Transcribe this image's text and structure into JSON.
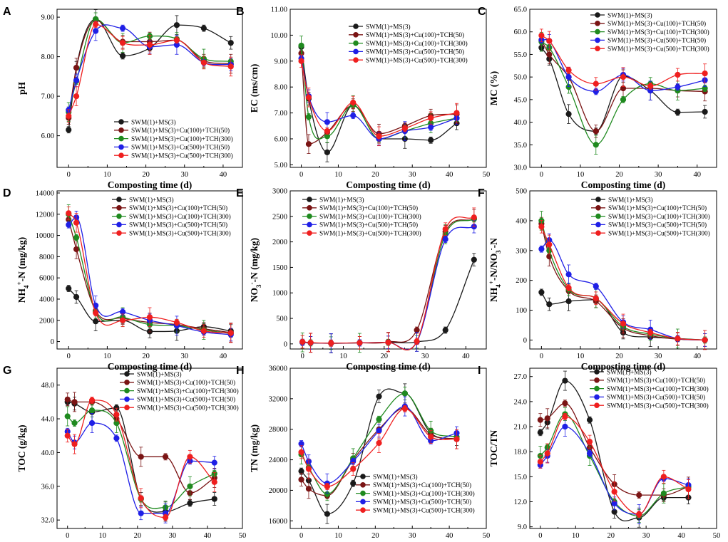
{
  "figure": {
    "x_label": "Composting time (d)"
  },
  "series_colors": [
    "#1a1a1a",
    "#7a1414",
    "#1f8a1f",
    "#1f1fe6",
    "#ef1f1f"
  ],
  "legend_labels": [
    "SWM(1)+MS(3)",
    "SWM(1)+MS(3)+Cu(100)+TCH(50)",
    "SWM(1)+MS(3)+Cu(100)+TCH(300)",
    "SWM(1)+MS(3)+Cu(500)+TCH(50)",
    "SWM(1)+MS(3)+Cu(500)+TCH(300)"
  ],
  "chart_data": [
    {
      "panel": "A",
      "type": "line",
      "ylabel": "pH",
      "xlim": [
        -3,
        45
      ],
      "xticks": [
        0,
        10,
        20,
        30,
        40
      ],
      "ylim": [
        5.2,
        9.2
      ],
      "yticks": [
        "6.00",
        "7.00",
        "8.00",
        "9.00"
      ],
      "ytick_values": [
        6,
        7,
        8,
        9
      ],
      "x": [
        0,
        2,
        7,
        14,
        21,
        28,
        35,
        42
      ],
      "series": [
        {
          "name": "SWM(1)+MS(3)",
          "values": [
            6.15,
            7.72,
            8.95,
            8.02,
            8.22,
            8.8,
            8.72,
            8.35
          ]
        },
        {
          "name": "SWM(1)+MS(3)+Cu(100)+TCH(50)",
          "values": [
            6.45,
            7.72,
            8.92,
            8.38,
            8.38,
            8.42,
            7.9,
            7.82
          ]
        },
        {
          "name": "SWM(1)+MS(3)+Cu(100)+TCH(300)",
          "values": [
            6.6,
            7.38,
            8.95,
            8.35,
            8.52,
            8.45,
            7.95,
            7.88
          ]
        },
        {
          "name": "SWM(1)+MS(3)+Cu(500)+TCH(50)",
          "values": [
            6.65,
            7.4,
            8.65,
            8.72,
            8.25,
            8.3,
            7.85,
            7.8
          ]
        },
        {
          "name": "SWM(1)+MS(3)+Cu(500)+TCH(300)",
          "values": [
            6.5,
            7.0,
            8.82,
            8.35,
            8.3,
            8.42,
            7.85,
            7.75
          ]
        }
      ],
      "legend": "bottom-right"
    },
    {
      "panel": "B",
      "type": "line",
      "ylabel": "EC (ms/cm)",
      "xlim": [
        -3,
        50
      ],
      "xticks": [
        0,
        10,
        20,
        30,
        40,
        50
      ],
      "ylim": [
        4.9,
        11.0
      ],
      "yticks": [
        "5.00",
        "6.00",
        "7.00",
        "8.00",
        "9.00",
        "10.00",
        "11.00"
      ],
      "ytick_values": [
        5,
        6,
        7,
        8,
        9,
        10,
        11
      ],
      "x": [
        0,
        2,
        7,
        14,
        21,
        28,
        35,
        42
      ],
      "series": [
        {
          "name": "SWM(1)+MS(3)",
          "values": [
            9.55,
            7.55,
            5.48,
            7.3,
            6.0,
            6.0,
            5.95,
            6.6
          ]
        },
        {
          "name": "SWM(1)+MS(3)+Cu(100)+TCH(50)",
          "values": [
            9.3,
            5.8,
            6.25,
            7.3,
            6.2,
            6.5,
            6.9,
            6.95
          ]
        },
        {
          "name": "SWM(1)+MS(3)+Cu(100)+TCH(300)",
          "values": [
            9.6,
            6.85,
            6.1,
            7.3,
            6.0,
            6.3,
            6.6,
            6.8
          ]
        },
        {
          "name": "SWM(1)+MS(3)+Cu(500)+TCH(50)",
          "values": [
            9.1,
            7.65,
            6.65,
            6.9,
            6.0,
            6.3,
            6.45,
            6.8
          ]
        },
        {
          "name": "SWM(1)+MS(3)+Cu(500)+TCH(300)",
          "values": [
            9.0,
            7.6,
            6.3,
            7.4,
            6.1,
            6.4,
            6.8,
            7.0
          ]
        }
      ],
      "legend": "top-right"
    },
    {
      "panel": "C",
      "type": "line",
      "ylabel": "MC (%)",
      "xlim": [
        -3,
        45
      ],
      "xticks": [
        0,
        10,
        20,
        30,
        40
      ],
      "ylim": [
        30.0,
        65.0
      ],
      "yticks": [
        "30.0",
        "35.0",
        "40.0",
        "45.0",
        "50.0",
        "55.0",
        "60.0",
        "65.0"
      ],
      "ytick_values": [
        30,
        35,
        40,
        45,
        50,
        55,
        60,
        65
      ],
      "x": [
        0,
        2,
        7,
        14,
        21,
        28,
        35,
        42
      ],
      "series": [
        {
          "name": "SWM(1)+MS(3)",
          "values": [
            56.5,
            54.0,
            41.8,
            38.0,
            50.2,
            47.0,
            42.2,
            42.3
          ]
        },
        {
          "name": "SWM(1)+MS(3)+Cu(100)+TCH(50)",
          "values": [
            58.2,
            55.0,
            50.0,
            38.0,
            47.5,
            47.5,
            47.0,
            46.8
          ]
        },
        {
          "name": "SWM(1)+MS(3)+Cu(100)+TCH(300)",
          "values": [
            57.8,
            56.5,
            47.8,
            35.0,
            45.0,
            48.5,
            47.0,
            47.5
          ]
        },
        {
          "name": "SWM(1)+MS(3)+Cu(500)+TCH(50)",
          "values": [
            58.2,
            58.0,
            50.0,
            46.8,
            50.5,
            47.0,
            47.8,
            49.3
          ]
        },
        {
          "name": "SWM(1)+MS(3)+Cu(500)+TCH(300)",
          "values": [
            59.2,
            58.0,
            51.5,
            48.5,
            50.0,
            48.0,
            50.5,
            50.8
          ]
        }
      ],
      "legend": "top-right"
    },
    {
      "panel": "D",
      "type": "line",
      "ylabel": "NH4+-N (mg/kg)",
      "xlim": [
        -3,
        45
      ],
      "xticks": [
        0,
        10,
        20,
        30,
        40
      ],
      "ylim": [
        -700,
        14200
      ],
      "yticks": [
        "0",
        "2000",
        "4000",
        "6000",
        "8000",
        "10000",
        "12000",
        "14000"
      ],
      "ytick_values": [
        0,
        2000,
        4000,
        6000,
        8000,
        10000,
        12000,
        14000
      ],
      "x": [
        0,
        2,
        7,
        14,
        21,
        28,
        35,
        42
      ],
      "series": [
        {
          "name": "SWM(1)+MS(3)",
          "values": [
            5000,
            4200,
            1900,
            2000,
            950,
            1000,
            1400,
            1000
          ]
        },
        {
          "name": "SWM(1)+MS(3)+Cu(100)+TCH(50)",
          "values": [
            11500,
            8700,
            2900,
            2200,
            1800,
            1600,
            1200,
            850
          ]
        },
        {
          "name": "SWM(1)+MS(3)+Cu(100)+TCH(300)",
          "values": [
            12000,
            9800,
            2800,
            2300,
            1600,
            1500,
            1100,
            750
          ]
        },
        {
          "name": "SWM(1)+MS(3)+Cu(500)+TCH(50)",
          "values": [
            11000,
            11700,
            3400,
            2800,
            2000,
            1500,
            900,
            650
          ]
        },
        {
          "name": "SWM(1)+MS(3)+Cu(500)+TCH(300)",
          "values": [
            12100,
            11200,
            2700,
            2000,
            2300,
            1800,
            1000,
            800
          ]
        }
      ],
      "legend": "top-right"
    },
    {
      "panel": "E",
      "type": "line",
      "ylabel": "NO3--N (mg/kg)",
      "xlim": [
        -3,
        45
      ],
      "xticks": [
        0,
        10,
        20,
        30,
        40
      ],
      "ylim": [
        -100,
        3000
      ],
      "yticks": [
        "0",
        "500",
        "1000",
        "1500",
        "2000",
        "2500",
        "3000"
      ],
      "ytick_values": [
        0,
        500,
        1000,
        1500,
        2000,
        2500,
        3000
      ],
      "x": [
        0,
        2,
        7,
        14,
        21,
        28,
        35,
        42
      ],
      "series": [
        {
          "name": "SWM(1)+MS(3)",
          "values": [
            30,
            20,
            10,
            20,
            30,
            40,
            270,
            1650
          ]
        },
        {
          "name": "SWM(1)+MS(3)+Cu(100)+TCH(50)",
          "values": [
            40,
            20,
            15,
            20,
            40,
            270,
            2200,
            2450
          ]
        },
        {
          "name": "SWM(1)+MS(3)+Cu(100)+TCH(300)",
          "values": [
            30,
            20,
            15,
            20,
            30,
            40,
            2150,
            2450
          ]
        },
        {
          "name": "SWM(1)+MS(3)+Cu(500)+TCH(50)",
          "values": [
            30,
            20,
            15,
            20,
            30,
            40,
            2050,
            2300
          ]
        },
        {
          "name": "SWM(1)+MS(3)+Cu(500)+TCH(300)",
          "values": [
            40,
            25,
            15,
            20,
            30,
            50,
            2250,
            2480
          ]
        }
      ],
      "legend": "top-left"
    },
    {
      "panel": "F",
      "type": "line",
      "ylabel": "NH4+-N/NO3--N",
      "xlim": [
        -3,
        45
      ],
      "xticks": [
        0,
        10,
        20,
        30,
        40
      ],
      "ylim": [
        -30,
        500
      ],
      "yticks": [
        "0",
        "100",
        "200",
        "300",
        "400",
        "500"
      ],
      "ytick_values": [
        0,
        100,
        200,
        300,
        400,
        500
      ],
      "x": [
        0,
        2,
        7,
        14,
        21,
        28,
        35,
        42
      ],
      "series": [
        {
          "name": "SWM(1)+MS(3)",
          "values": [
            160,
            120,
            130,
            135,
            25,
            10,
            5,
            0
          ]
        },
        {
          "name": "SWM(1)+MS(3)+Cu(100)+TCH(50)",
          "values": [
            390,
            280,
            165,
            130,
            40,
            15,
            3,
            0
          ]
        },
        {
          "name": "SWM(1)+MS(3)+Cu(100)+TCH(300)",
          "values": [
            400,
            300,
            170,
            140,
            45,
            20,
            5,
            0
          ]
        },
        {
          "name": "SWM(1)+MS(3)+Cu(500)+TCH(50)",
          "values": [
            305,
            335,
            220,
            180,
            60,
            35,
            5,
            0
          ]
        },
        {
          "name": "SWM(1)+MS(3)+Cu(500)+TCH(300)",
          "values": [
            380,
            320,
            175,
            140,
            55,
            25,
            5,
            0
          ]
        }
      ],
      "legend": "top-right"
    },
    {
      "panel": "G",
      "type": "line",
      "ylabel": "TOC (g/kg)",
      "xlim": [
        -3,
        50
      ],
      "xticks": [
        0,
        10,
        20,
        30,
        40,
        50
      ],
      "ylim": [
        31.0,
        50.0
      ],
      "yticks": [
        "32.0",
        "36.0",
        "40.0",
        "44.0",
        "48.0"
      ],
      "ytick_values": [
        32,
        36,
        40,
        44,
        48
      ],
      "x": [
        0,
        2,
        7,
        14,
        21,
        28,
        35,
        42
      ],
      "series": [
        {
          "name": "SWM(1)+MS(3)",
          "values": [
            46.0,
            45.8,
            44.8,
            45.3,
            34.5,
            33.0,
            34.0,
            34.5
          ]
        },
        {
          "name": "SWM(1)+MS(3)+Cu(100)+TCH(50)",
          "values": [
            46.3,
            46.0,
            46.0,
            44.0,
            39.5,
            39.5,
            35.2,
            37.0
          ]
        },
        {
          "name": "SWM(1)+MS(3)+Cu(100)+TCH(300)",
          "values": [
            44.3,
            43.5,
            45.0,
            43.5,
            34.5,
            33.5,
            36.0,
            37.5
          ]
        },
        {
          "name": "SWM(1)+MS(3)+Cu(500)+TCH(50)",
          "values": [
            42.5,
            41.2,
            43.5,
            41.7,
            32.8,
            32.8,
            39.0,
            38.8
          ]
        },
        {
          "name": "SWM(1)+MS(3)+Cu(500)+TCH(300)",
          "values": [
            42.0,
            41.0,
            46.2,
            44.5,
            34.6,
            32.3,
            39.5,
            36.5
          ]
        }
      ],
      "legend": "top-right"
    },
    {
      "panel": "H",
      "type": "line",
      "ylabel": "TN (mg/kg)",
      "xlim": [
        -3,
        50
      ],
      "xticks": [
        0,
        10,
        20,
        30,
        40,
        50
      ],
      "ylim": [
        15000,
        36000
      ],
      "yticks": [
        "16000",
        "20000",
        "24000",
        "28000",
        "32000",
        "36000"
      ],
      "ytick_values": [
        16000,
        20000,
        24000,
        28000,
        32000,
        36000
      ],
      "x": [
        0,
        2,
        7,
        14,
        21,
        28,
        35,
        42
      ],
      "series": [
        {
          "name": "SWM(1)+MS(3)",
          "values": [
            22500,
            21300,
            16900,
            20900,
            32300,
            32700,
            27500,
            26700
          ]
        },
        {
          "name": "SWM(1)+MS(3)+Cu(100)+TCH(50)",
          "values": [
            21400,
            20200,
            19300,
            24000,
            28000,
            30800,
            27300,
            26700
          ]
        },
        {
          "name": "SWM(1)+MS(3)+Cu(100)+TCH(300)",
          "values": [
            24700,
            23000,
            19500,
            24200,
            29300,
            32700,
            27800,
            27000
          ]
        },
        {
          "name": "SWM(1)+MS(3)+Cu(500)+TCH(50)",
          "values": [
            26100,
            23800,
            20900,
            23800,
            27800,
            31000,
            26500,
            27500
          ]
        },
        {
          "name": "SWM(1)+MS(3)+Cu(500)+TCH(300)",
          "values": [
            25000,
            22800,
            20500,
            22800,
            26200,
            30700,
            27000,
            26700
          ]
        }
      ],
      "legend": "bottom-right"
    },
    {
      "panel": "I",
      "type": "line",
      "ylabel": "TOC/TN",
      "xlim": [
        -3,
        50
      ],
      "xticks": [
        0,
        10,
        20,
        30,
        40,
        50
      ],
      "ylim": [
        8.8,
        28.0
      ],
      "yticks": [
        "9.0",
        "12.0",
        "15.0",
        "18.0",
        "21.0",
        "24.0",
        "27.0"
      ],
      "ytick_values": [
        9,
        12,
        15,
        18,
        21,
        24,
        27
      ],
      "x": [
        0,
        2,
        7,
        14,
        21,
        28,
        35,
        42
      ],
      "series": [
        {
          "name": "SWM(1)+MS(3)",
          "values": [
            20.3,
            21.5,
            26.5,
            21.8,
            10.8,
            10.1,
            12.5,
            12.5
          ]
        },
        {
          "name": "SWM(1)+MS(3)+Cu(100)+TCH(50)",
          "values": [
            21.8,
            22.0,
            23.8,
            18.5,
            14.1,
            12.8,
            12.8,
            13.8
          ]
        },
        {
          "name": "SWM(1)+MS(3)+Cu(100)+TCH(300)",
          "values": [
            17.5,
            18.5,
            22.5,
            17.5,
            12.0,
            10.3,
            13.0,
            13.8
          ]
        },
        {
          "name": "SWM(1)+MS(3)+Cu(500)+TCH(50)",
          "values": [
            16.4,
            17.5,
            21.0,
            17.8,
            11.8,
            10.5,
            14.8,
            14.0
          ]
        },
        {
          "name": "SWM(1)+MS(3)+Cu(500)+TCH(300)",
          "values": [
            16.8,
            17.8,
            22.2,
            19.2,
            13.2,
            10.5,
            15.0,
            13.5
          ]
        }
      ],
      "legend": "top-right"
    }
  ]
}
